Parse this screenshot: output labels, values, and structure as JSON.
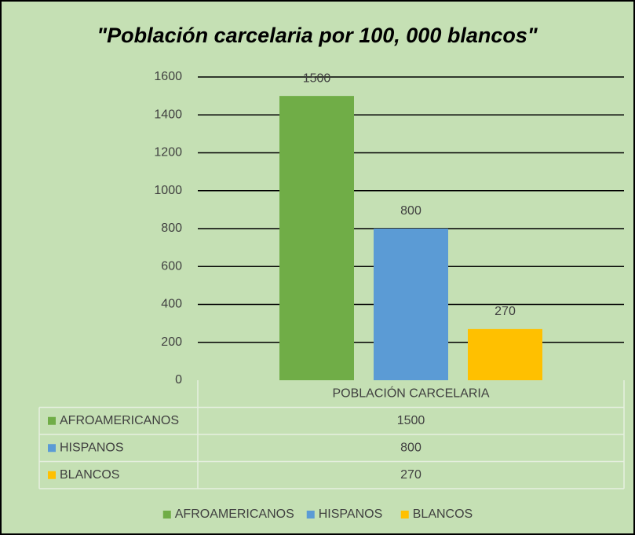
{
  "chart_data": {
    "type": "bar",
    "title": "\"Población carcelaria por 100, 000 blancos\"",
    "categories": [
      "POBLACIÓN CARCELARIA"
    ],
    "series": [
      {
        "name": "AFROAMERICANOS",
        "color": "#70ad47",
        "values": [
          1500
        ]
      },
      {
        "name": "HISPANOS",
        "color": "#5b9bd5",
        "values": [
          800
        ]
      },
      {
        "name": "BLANCOS",
        "color": "#ffc000",
        "values": [
          270
        ]
      }
    ],
    "ylim": [
      0,
      1600
    ],
    "yticks": [
      0,
      200,
      400,
      600,
      800,
      1000,
      1200,
      1400,
      1600
    ],
    "grid": true,
    "data_table": true,
    "legend": "bottom"
  }
}
